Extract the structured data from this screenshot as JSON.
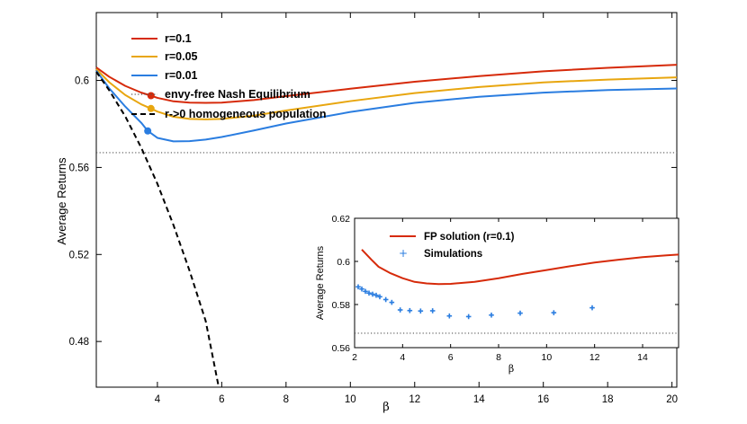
{
  "chart_data": [
    {
      "type": "line",
      "xlabel": "β",
      "ylabel": "Average Returns",
      "xlim": [
        2.1,
        20.15
      ],
      "ylim": [
        0.459,
        0.6312
      ],
      "xticks": [
        4,
        6,
        8,
        10,
        12,
        14,
        16,
        18,
        20
      ],
      "xtick_labels": [
        "4",
        "6",
        "8",
        "10",
        "12",
        "14",
        "16",
        "18",
        "20"
      ],
      "yticks": [
        0.48,
        0.52,
        0.56,
        0.6
      ],
      "ytick_labels": [
        "0.48",
        "0.52",
        "0.56",
        "0.6"
      ],
      "legend_position": "top-left",
      "series": [
        {
          "name": "r=0.1",
          "color": "#d62a0a",
          "style": "solid",
          "x": [
            2.1,
            2.5,
            3.0,
            3.5,
            3.8,
            4.0,
            4.5,
            5.0,
            5.5,
            6,
            7,
            8,
            10,
            12,
            14,
            16,
            18,
            20.15
          ],
          "y": [
            0.606,
            0.6017,
            0.5975,
            0.5944,
            0.593,
            0.592,
            0.5904,
            0.5898,
            0.5897,
            0.5898,
            0.591,
            0.5928,
            0.5962,
            0.5994,
            0.602,
            0.6042,
            0.6058,
            0.6072
          ],
          "marker": {
            "x": 3.8,
            "y": 0.593
          }
        },
        {
          "name": "r=0.05",
          "color": "#e8a60f",
          "style": "solid",
          "x": [
            2.1,
            2.5,
            3.0,
            3.5,
            3.8,
            4.0,
            4.5,
            5.0,
            5.5,
            6,
            7,
            8,
            10,
            12,
            14,
            16,
            18,
            20.15
          ],
          "y": [
            0.6052,
            0.5992,
            0.5933,
            0.589,
            0.5871,
            0.5857,
            0.5833,
            0.5823,
            0.5821,
            0.5823,
            0.5838,
            0.5862,
            0.5905,
            0.5942,
            0.597,
            0.5991,
            0.6004,
            0.6014
          ],
          "marker": {
            "x": 3.8,
            "y": 0.5871
          }
        },
        {
          "name": "r=0.01",
          "color": "#2a7de0",
          "style": "solid",
          "x": [
            2.1,
            2.5,
            3.0,
            3.5,
            3.7,
            4.0,
            4.5,
            5.0,
            5.5,
            6,
            7,
            8,
            10,
            12,
            14,
            16,
            18,
            20.15
          ],
          "y": [
            0.6045,
            0.5964,
            0.588,
            0.5805,
            0.5768,
            0.5736,
            0.572,
            0.5721,
            0.5728,
            0.574,
            0.577,
            0.5802,
            0.5855,
            0.5897,
            0.5925,
            0.5944,
            0.5956,
            0.5963
          ],
          "marker": {
            "x": 3.7,
            "y": 0.5768
          }
        },
        {
          "name": "envy-free Nash Equilibrium",
          "color": "#555555",
          "style": "dotted",
          "x": [
            2.1,
            20.15
          ],
          "y": [
            0.5668,
            0.5668
          ]
        },
        {
          "name": "r->0 homogeneous population",
          "color": "#000000",
          "style": "dashed",
          "x": [
            2.1,
            2.5,
            3.0,
            3.5,
            4.0,
            4.5,
            5.0,
            5.5,
            5.9
          ],
          "y": [
            0.604,
            0.5955,
            0.5835,
            0.569,
            0.5525,
            0.5335,
            0.5125,
            0.4895,
            0.4595
          ]
        }
      ]
    },
    {
      "type": "line",
      "xlabel": "β",
      "ylabel": "Average Returns",
      "xlim": [
        2,
        15.5
      ],
      "ylim": [
        0.56,
        0.62
      ],
      "xticks": [
        2,
        4,
        6,
        8,
        10,
        12,
        14
      ],
      "xtick_labels": [
        "2",
        "4",
        "6",
        "8",
        "10",
        "12",
        "14"
      ],
      "yticks": [
        0.56,
        0.58,
        0.6,
        0.62
      ],
      "ytick_labels": [
        "0.56",
        "0.58",
        "0.6",
        "0.62"
      ],
      "legend_position": "top-left",
      "series": [
        {
          "name": "FP solution (r=0.1)",
          "color": "#d62a0a",
          "style": "solid",
          "x": [
            2.3,
            2.7,
            3.0,
            3.5,
            4.0,
            4.5,
            5.0,
            5.5,
            6.0,
            7,
            8,
            9,
            10,
            11,
            12,
            13,
            14,
            15,
            15.5
          ],
          "y": [
            0.6055,
            0.6008,
            0.5975,
            0.5945,
            0.5922,
            0.5905,
            0.5898,
            0.5895,
            0.5896,
            0.5905,
            0.5922,
            0.5942,
            0.596,
            0.5978,
            0.5995,
            0.6008,
            0.602,
            0.6028,
            0.6032
          ]
        },
        {
          "name": "Simulations",
          "color": "#2a7de0",
          "style": "markers",
          "x": [
            2.15,
            2.3,
            2.45,
            2.6,
            2.75,
            2.9,
            3.05,
            3.3,
            3.55,
            3.9,
            4.3,
            4.75,
            5.25,
            5.95,
            6.75,
            7.7,
            8.9,
            10.3,
            11.9
          ],
          "y": [
            0.5882,
            0.5872,
            0.5861,
            0.5853,
            0.5848,
            0.5843,
            0.5836,
            0.5823,
            0.581,
            0.5775,
            0.5772,
            0.577,
            0.5771,
            0.5747,
            0.5744,
            0.5751,
            0.576,
            0.5762,
            0.5785
          ]
        },
        {
          "name": "",
          "color": "#555555",
          "style": "dotted",
          "x": [
            2,
            15.5
          ],
          "y": [
            0.5667,
            0.5667
          ]
        }
      ]
    }
  ]
}
